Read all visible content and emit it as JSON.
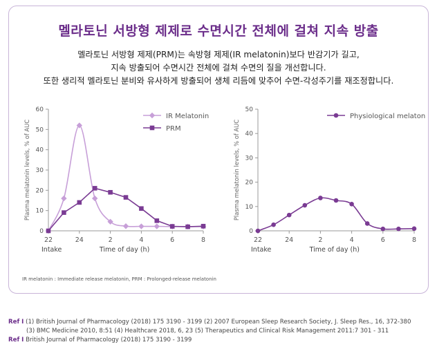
{
  "title": "멜라토닌 서방형 제제로 수면시간 전체에 걸쳐 지속 방출",
  "description": [
    "멜라토닌 서방형 제제(PRM)는 속방형 제제(IR melatonin)보다 반감기가 길고,",
    "지속 방출되어 수면시간 전체에 걸쳐 수면의 질을 개선합니다.",
    "또한 생리적 멜라토닌 분비와 유사하게 방출되어 생체 리듬에 맞추어 수면-각성주기를 재조정합니다."
  ],
  "footnote": "IR melatonin : Immediate release melatonin, PRM : Prolonged-release melatonin",
  "references": {
    "tag": "Ref I",
    "line1": "(1) British Journal of Pharmacology (2018) 175 3190 - 3199  (2) 2007 European Sleep Research Society, J. Sleep Res., 16, 372-380",
    "line2": "(3) BMC Medicine 2010, 8:51  (4) Healthcare 2018, 6, 23  (5) Therapeutics and Clinical Risk Management 2011:7 301 - 311",
    "line3": "British Journal of Pharmacology (2018) 175 3190 - 3199"
  },
  "colors": {
    "accent": "#6b2d8a",
    "ir": "#c79fd8",
    "prm": "#7a3b93",
    "phys": "#7a3b93",
    "axis": "#999999"
  },
  "chart_data": [
    {
      "type": "line",
      "ylabel": "Plasma melatonin levels, % of AUC",
      "xlabel": "Time of day (h)",
      "x_note": "Intake",
      "xticks": [
        "22",
        "24",
        "2",
        "4",
        "6",
        "8"
      ],
      "xlim": [
        22,
        32
      ],
      "ylim": [
        0,
        60
      ],
      "yticks": [
        0,
        10,
        20,
        30,
        40,
        50,
        60
      ],
      "legend": "top-right",
      "series": [
        {
          "name": "IR Melatonin",
          "marker": "diamond",
          "color": "#c79fd8",
          "x": [
            22,
            23,
            24,
            25,
            26,
            27,
            28,
            29,
            30,
            31,
            32
          ],
          "y": [
            0,
            16,
            52,
            16,
            4.5,
            2.3,
            2.2,
            2.2,
            2.1,
            2.1,
            2.1
          ]
        },
        {
          "name": "PRM",
          "marker": "square",
          "color": "#7a3b93",
          "x": [
            22,
            23,
            24,
            25,
            26,
            27,
            28,
            29,
            30,
            31,
            32
          ],
          "y": [
            0,
            9,
            14,
            21,
            19,
            16.5,
            11,
            5,
            2.2,
            2,
            2.3
          ]
        }
      ]
    },
    {
      "type": "line",
      "ylabel": "Plasma melatonin levels, % of AUC",
      "xlabel": "Time of day (h)",
      "x_note": "Intake",
      "xticks": [
        "22",
        "24",
        "2",
        "4",
        "6",
        "8"
      ],
      "xlim": [
        22,
        32
      ],
      "ylim": [
        0,
        50
      ],
      "yticks": [
        0,
        10,
        20,
        30,
        40,
        50
      ],
      "legend": "top-right",
      "series": [
        {
          "name": "Physiological melatonin",
          "marker": "circle",
          "color": "#7a3b93",
          "x": [
            22,
            23,
            24,
            25,
            26,
            27,
            28,
            29,
            30,
            31,
            32
          ],
          "y": [
            0,
            2.5,
            6.5,
            10.5,
            13.5,
            12.5,
            11,
            3,
            0.8,
            0.8,
            0.9
          ]
        }
      ]
    }
  ]
}
